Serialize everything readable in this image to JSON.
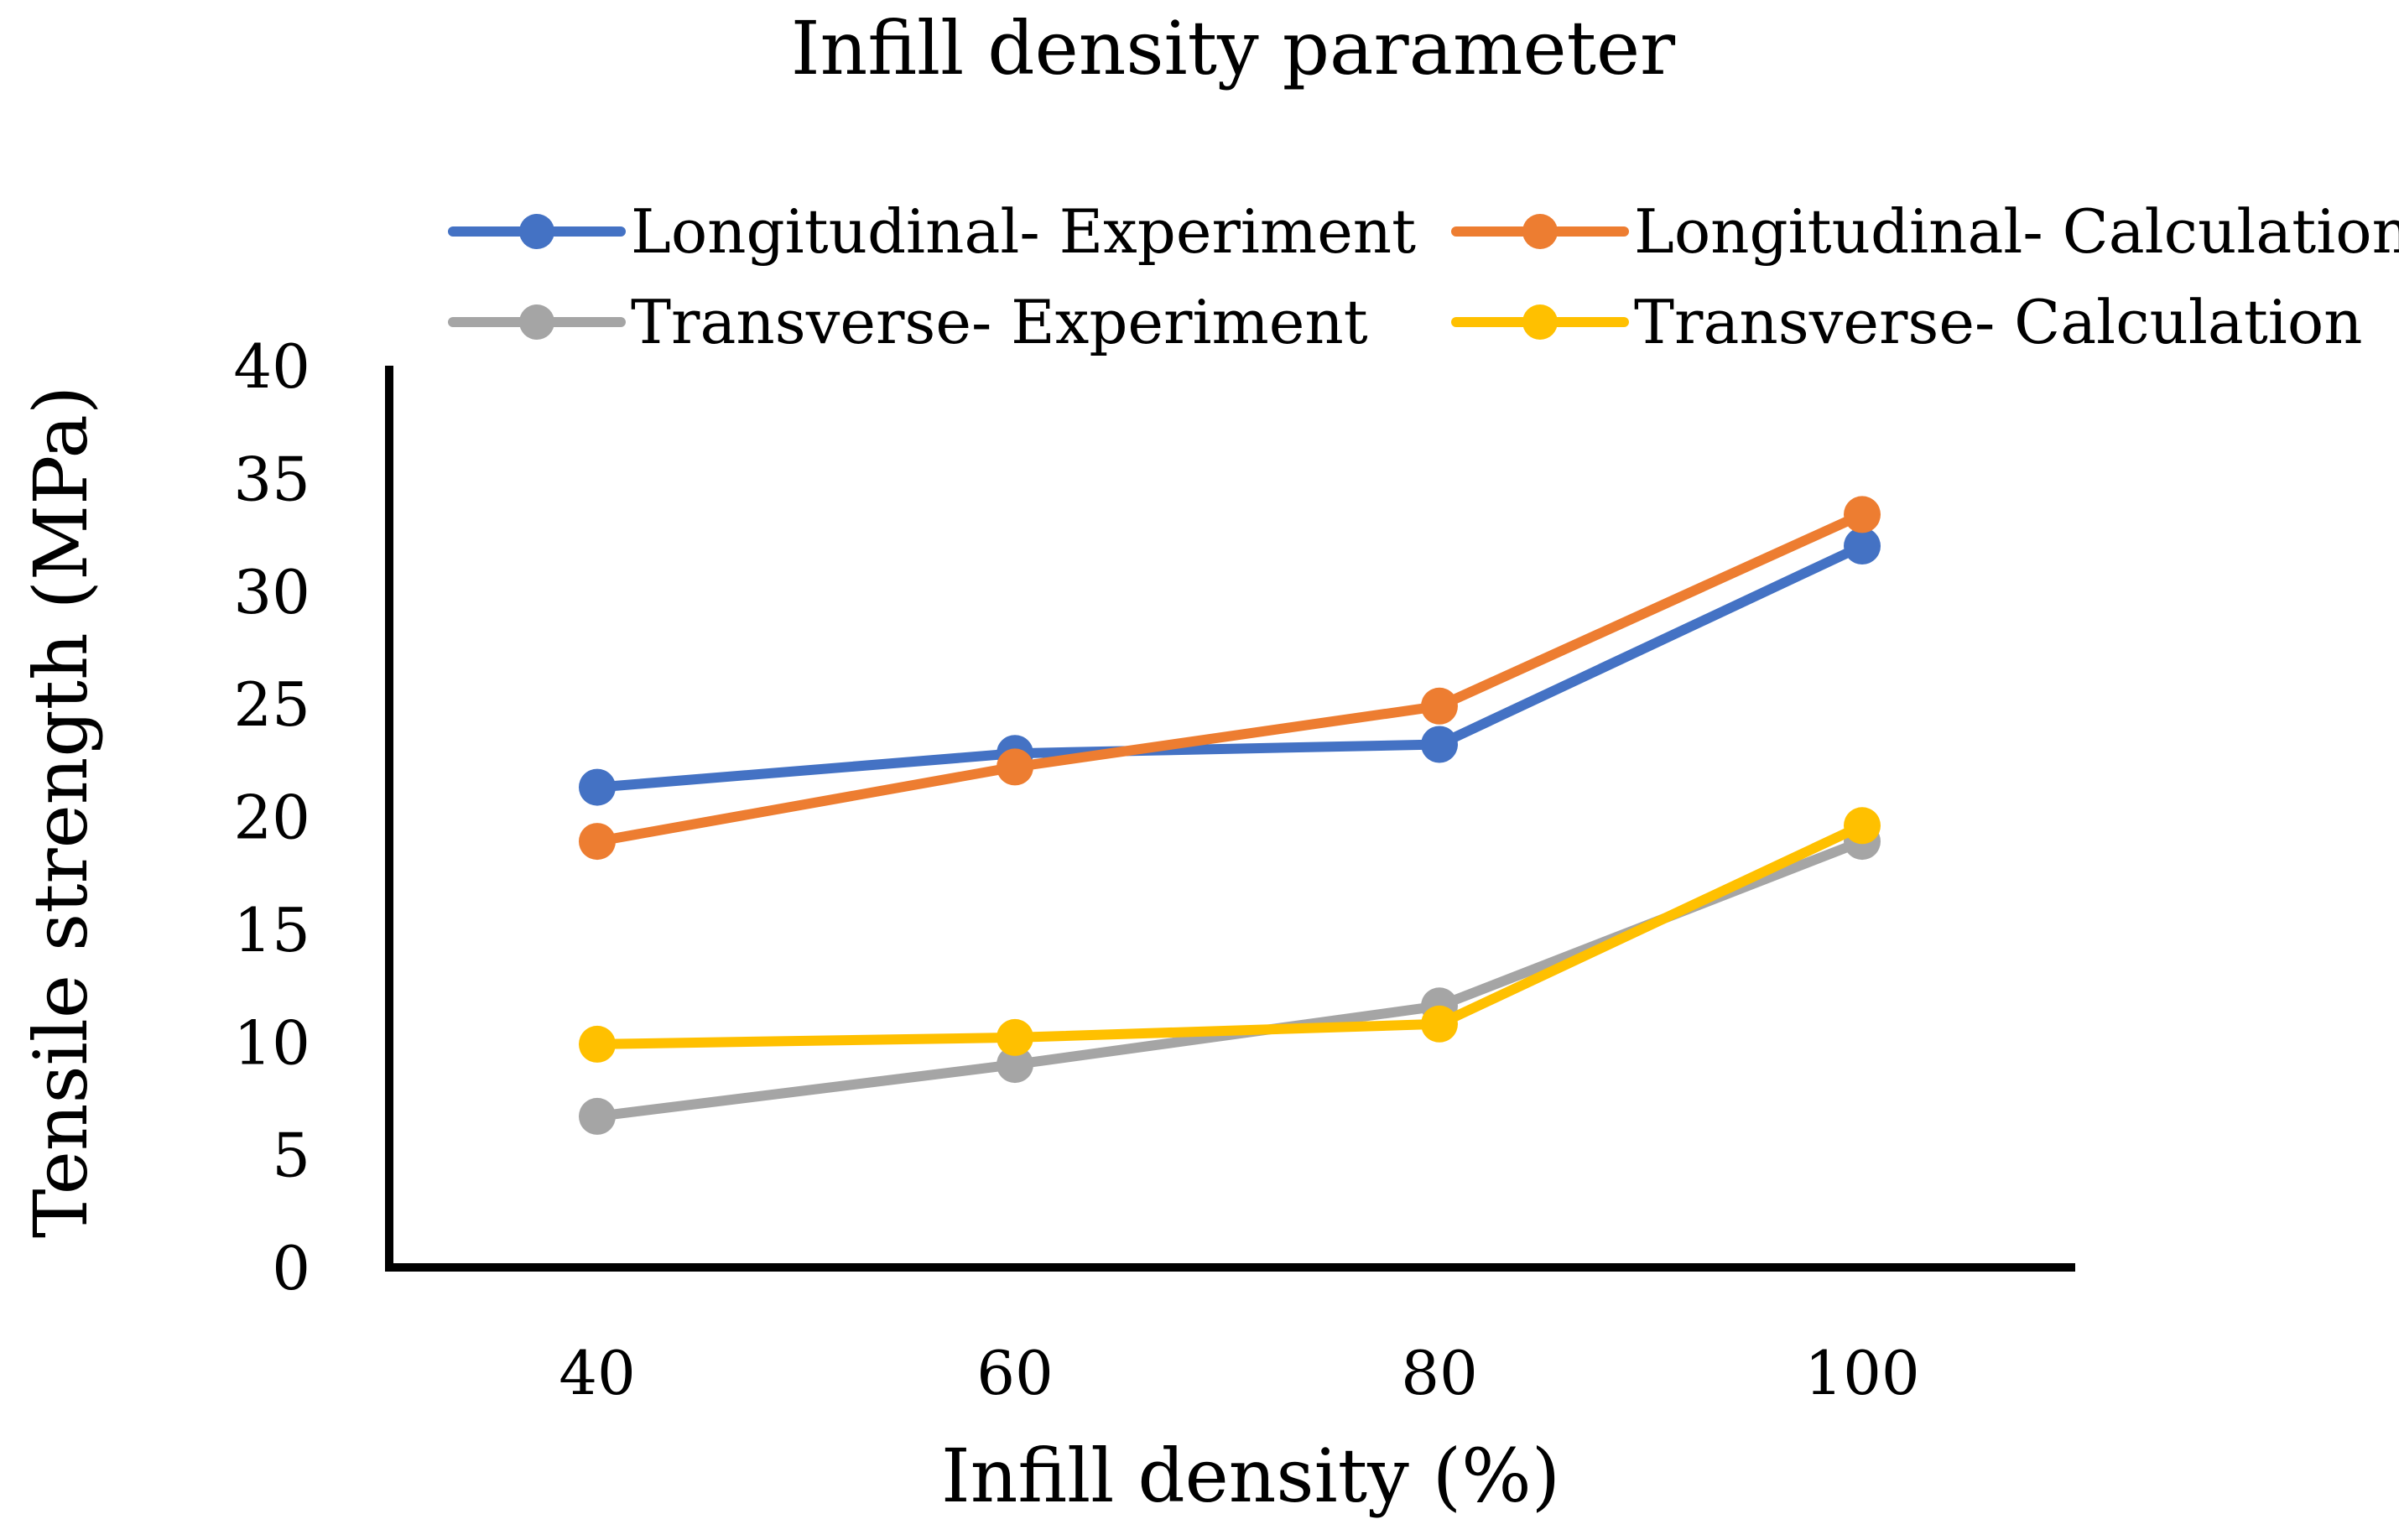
{
  "chart_data": {
    "type": "line",
    "title": "Infill density parameter",
    "xlabel": "Infill density (%)",
    "ylabel": "Tensile strength (MPa)",
    "x": [
      40,
      60,
      80,
      100
    ],
    "x_tick_labels": [
      "40",
      "60",
      "80",
      "100"
    ],
    "ylim": [
      0,
      40
    ],
    "y_ticks": [
      0,
      5,
      10,
      15,
      20,
      25,
      30,
      35,
      40
    ],
    "grid": false,
    "legend_position": "top",
    "series": [
      {
        "name": "Longitudinal- Experiment",
        "color": "#4472C4",
        "values": [
          21.3,
          22.8,
          23.2,
          32.0
        ]
      },
      {
        "name": "Longitudinal- Calculation",
        "color": "#ED7D31",
        "values": [
          18.9,
          22.2,
          24.9,
          33.4
        ]
      },
      {
        "name": "Transverse- Experiment",
        "color": "#A5A5A5",
        "values": [
          6.7,
          9.0,
          11.6,
          18.9
        ]
      },
      {
        "name": "Transverse- Calculation",
        "color": "#FFC000",
        "values": [
          9.9,
          10.2,
          10.8,
          19.6
        ]
      }
    ]
  }
}
